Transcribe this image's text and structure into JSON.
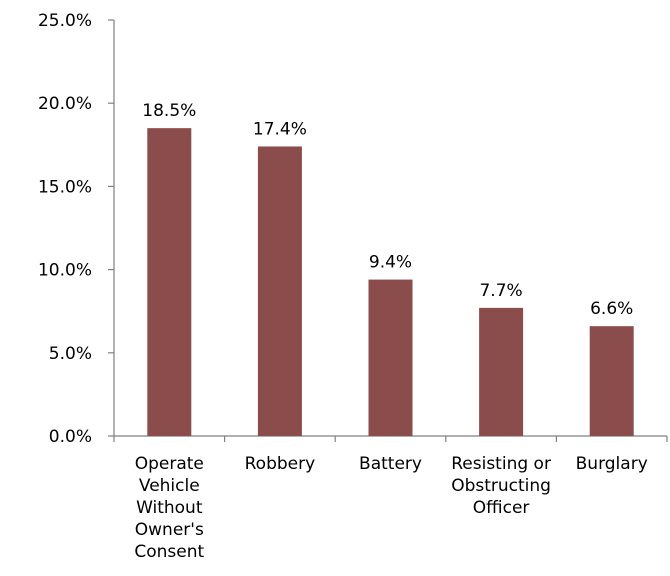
{
  "chart_data": {
    "type": "bar",
    "categories": [
      [
        "Operate",
        "Vehicle",
        "Without",
        "Owner's",
        "Consent"
      ],
      [
        "Robbery"
      ],
      [
        "Battery"
      ],
      [
        "Resisting or",
        "Obstructing",
        "Officer"
      ],
      [
        "Burglary"
      ]
    ],
    "values": [
      18.5,
      17.4,
      9.4,
      7.7,
      6.6
    ],
    "data_labels": [
      "18.5%",
      "17.4%",
      "9.4%",
      "7.7%",
      "6.6%"
    ],
    "ylim": [
      0,
      25
    ],
    "y_ticks": [
      0,
      5,
      10,
      15,
      20,
      25
    ],
    "y_tick_labels": [
      "0.0%",
      "5.0%",
      "10.0%",
      "15.0%",
      "20.0%",
      "25.0%"
    ],
    "bar_color": "#8B4C4C",
    "grid": false,
    "legend": "none"
  }
}
